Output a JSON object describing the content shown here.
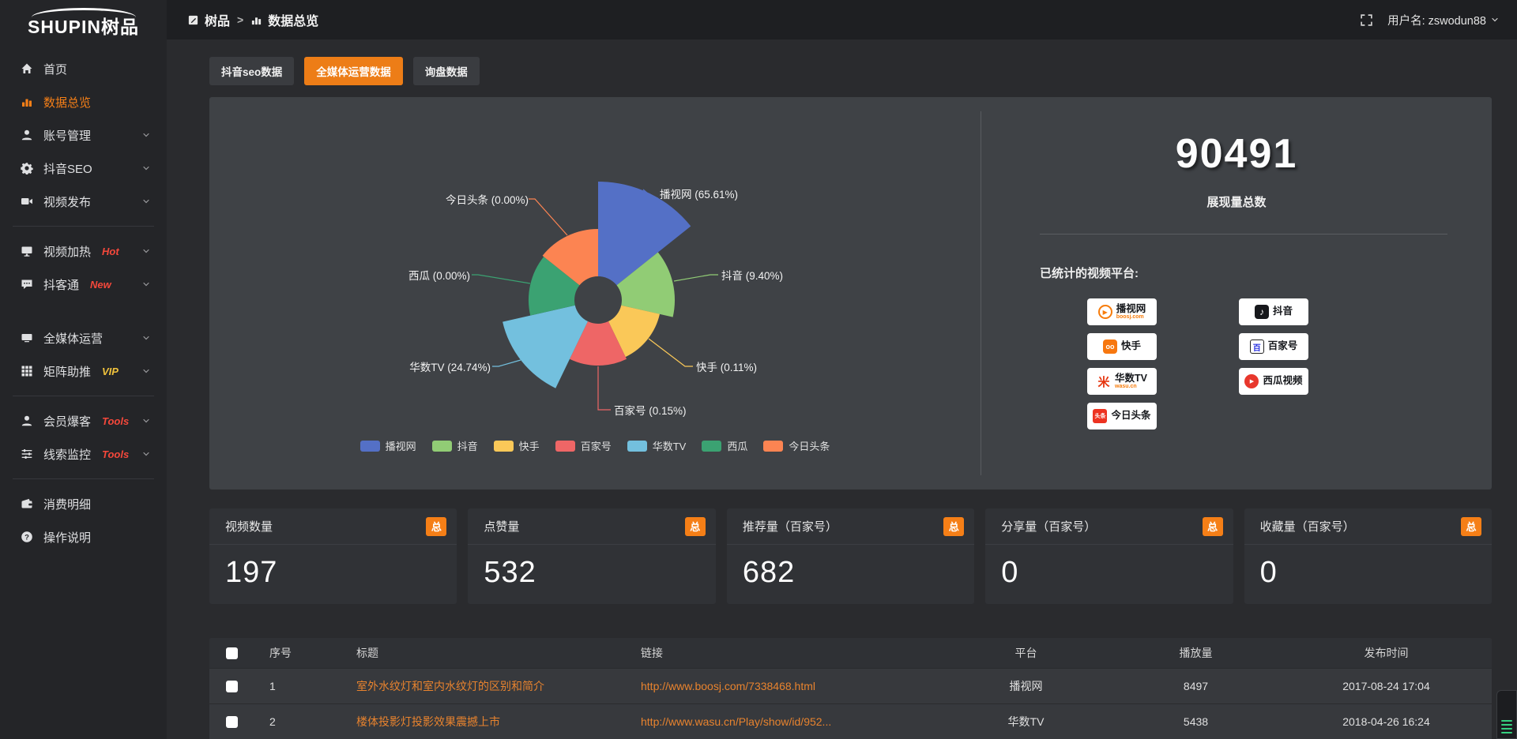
{
  "topbar": {
    "breadcrumb_root": "树品",
    "breadcrumb_separator": ">",
    "breadcrumb_current": "数据总览",
    "username": "用户名: zswodun88"
  },
  "sidebar": {
    "logo_text": "SHUPIN树品",
    "items": [
      {
        "label": "首页",
        "icon": "home-icon"
      },
      {
        "label": "数据总览",
        "icon": "bar-chart-icon",
        "active": true
      },
      {
        "label": "账号管理",
        "icon": "user-icon",
        "chevron": true
      },
      {
        "label": "抖音SEO",
        "icon": "gear-icon",
        "chevron": true
      },
      {
        "label": "视频发布",
        "icon": "video-camera-icon",
        "chevron": true,
        "divider_after": true
      },
      {
        "label": "视频加热",
        "tag": "Hot",
        "tag_color": "#f5483b",
        "icon": "monitor-icon",
        "chevron": true
      },
      {
        "label": "抖客通",
        "tag": "New",
        "tag_color": "#f5483b",
        "icon": "chat-icon",
        "chevron": true,
        "gap_after": true
      },
      {
        "label": "全媒体运营",
        "icon": "display-icon",
        "chevron": true
      },
      {
        "label": "矩阵助推",
        "tag": "VIP",
        "tag_color": "#f0c23c",
        "icon": "grid-icon",
        "chevron": true,
        "divider_after": true
      },
      {
        "label": "会员爆客",
        "tag": "Tools",
        "tag_color": "#f5483b",
        "icon": "person-icon",
        "chevron": true
      },
      {
        "label": "线索监控",
        "tag": "Tools",
        "tag_color": "#f5483b",
        "icon": "sliders-icon",
        "chevron": true,
        "divider_after": true
      },
      {
        "label": "消费明细",
        "icon": "wallet-icon"
      },
      {
        "label": "操作说明",
        "icon": "question-icon"
      }
    ]
  },
  "tabs": [
    {
      "label": "抖音seo数据"
    },
    {
      "label": "全媒体运营数据",
      "active": true
    },
    {
      "label": "询盘数据"
    }
  ],
  "chart_data": {
    "type": "pie",
    "variant": "nightingale-rose",
    "equal_angles": true,
    "inner_radius_px": 30,
    "legend_position": "bottom",
    "slices": [
      {
        "name": "播视网",
        "percent": 65.61,
        "color": "#5470c6",
        "display_radius_px": 150
      },
      {
        "name": "抖音",
        "percent": 9.4,
        "color": "#91cc75",
        "display_radius_px": 97
      },
      {
        "name": "快手",
        "percent": 0.11,
        "color": "#fac858",
        "display_radius_px": 80
      },
      {
        "name": "百家号",
        "percent": 0.15,
        "color": "#ee6666",
        "display_radius_px": 83
      },
      {
        "name": "华数TV",
        "percent": 24.74,
        "color": "#73c0de",
        "display_radius_px": 124
      },
      {
        "name": "西瓜",
        "percent": 0.0,
        "color": "#3ba272",
        "display_radius_px": 88
      },
      {
        "name": "今日头条",
        "percent": 0.0,
        "color": "#fc8452",
        "display_radius_px": 90
      }
    ]
  },
  "summary": {
    "total_value": "90491",
    "total_label": "展现量总数",
    "platforms_label": "已统计的视频平台:",
    "platform_columns": [
      [
        {
          "name": "播视网",
          "sub": "boosj.com",
          "logo": "boosj-logo"
        },
        {
          "name": "快手",
          "logo": "kuaishou-logo"
        },
        {
          "name": "华数TV",
          "sub": "wasu.cn",
          "logo": "wasu-logo"
        },
        {
          "name": "今日头条",
          "logo": "toutiao-logo"
        }
      ],
      [
        {
          "name": "抖音",
          "logo": "douyin-logo"
        },
        {
          "name": "百家号",
          "logo": "baijiahao-logo"
        },
        {
          "name": "西瓜视频",
          "logo": "xigua-logo"
        }
      ]
    ]
  },
  "stat_cards": [
    {
      "title": "视频数量",
      "badge": "总",
      "value": "197"
    },
    {
      "title": "点赞量",
      "badge": "总",
      "value": "532"
    },
    {
      "title": "推荐量（百家号）",
      "badge": "总",
      "value": "682"
    },
    {
      "title": "分享量（百家号）",
      "badge": "总",
      "value": "0"
    },
    {
      "title": "收藏量（百家号）",
      "badge": "总",
      "value": "0"
    }
  ],
  "table": {
    "columns": [
      "序号",
      "标题",
      "链接",
      "平台",
      "播放量",
      "发布时间"
    ],
    "rows": [
      {
        "index": "1",
        "title": "室外水纹灯和室内水纹灯的区别和简介",
        "link": "http://www.boosj.com/7338468.html",
        "platform": "播视网",
        "plays": "8497",
        "published": "2017-08-24 17:04"
      },
      {
        "index": "2",
        "title": "楼体投影灯投影效果震撼上市",
        "link": "http://www.wasu.cn/Play/show/id/952...",
        "platform": "华数TV",
        "plays": "5438",
        "published": "2018-04-26 16:24"
      }
    ]
  },
  "colors": {
    "accent_orange": "#ed7d17",
    "badge_orange": "#f57f17",
    "link_orange": "#e8832e",
    "tag_red": "#f5483b",
    "tag_yellow": "#f0c23c",
    "panel_bg": "#3f4246",
    "card_bg": "#303236",
    "sidebar_bg": "#242528",
    "topbar_bg": "#1e1f22",
    "page_bg": "#2a2b2e"
  }
}
